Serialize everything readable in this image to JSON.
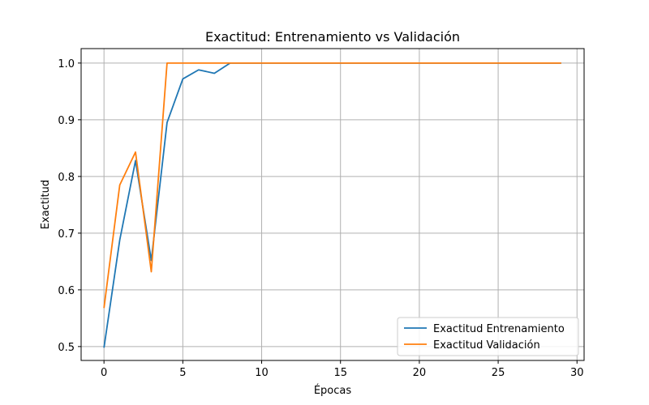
{
  "chart_data": {
    "type": "line",
    "title": "Exactitud: Entrenamiento vs Validación",
    "xlabel": "Épocas",
    "ylabel": "Exactitud",
    "xlim": [
      -1.45,
      30.45
    ],
    "ylim": [
      0.4755,
      1.0255
    ],
    "xticks": [
      0,
      5,
      10,
      15,
      20,
      25,
      30
    ],
    "yticks": [
      0.5,
      0.6,
      0.7,
      0.8,
      0.9,
      1.0
    ],
    "xtick_labels": [
      "0",
      "5",
      "10",
      "15",
      "20",
      "25",
      "30"
    ],
    "ytick_labels": [
      "0.5",
      "0.6",
      "0.7",
      "0.8",
      "0.9",
      "1.0"
    ],
    "grid": true,
    "legend_position": "lower-right",
    "x": [
      0,
      1,
      2,
      3,
      4,
      5,
      6,
      7,
      8,
      9,
      10,
      11,
      12,
      13,
      14,
      15,
      16,
      17,
      18,
      19,
      20,
      21,
      22,
      23,
      24,
      25,
      26,
      27,
      28,
      29
    ],
    "series": [
      {
        "name": "Exactitud Entrenamiento",
        "color": "#1f77b4",
        "values": [
          0.498,
          0.688,
          0.828,
          0.652,
          0.895,
          0.972,
          0.988,
          0.982,
          1.0,
          1.0,
          1.0,
          1.0,
          1.0,
          1.0,
          1.0,
          1.0,
          1.0,
          1.0,
          1.0,
          1.0,
          1.0,
          1.0,
          1.0,
          1.0,
          1.0,
          1.0,
          1.0,
          1.0,
          1.0,
          1.0
        ]
      },
      {
        "name": "Exactitud Validación",
        "color": "#ff7f0e",
        "values": [
          0.568,
          0.785,
          0.843,
          0.632,
          1.0,
          1.0,
          1.0,
          1.0,
          1.0,
          1.0,
          1.0,
          1.0,
          1.0,
          1.0,
          1.0,
          1.0,
          1.0,
          1.0,
          1.0,
          1.0,
          1.0,
          1.0,
          1.0,
          1.0,
          1.0,
          1.0,
          1.0,
          1.0,
          1.0,
          1.0
        ]
      }
    ]
  }
}
